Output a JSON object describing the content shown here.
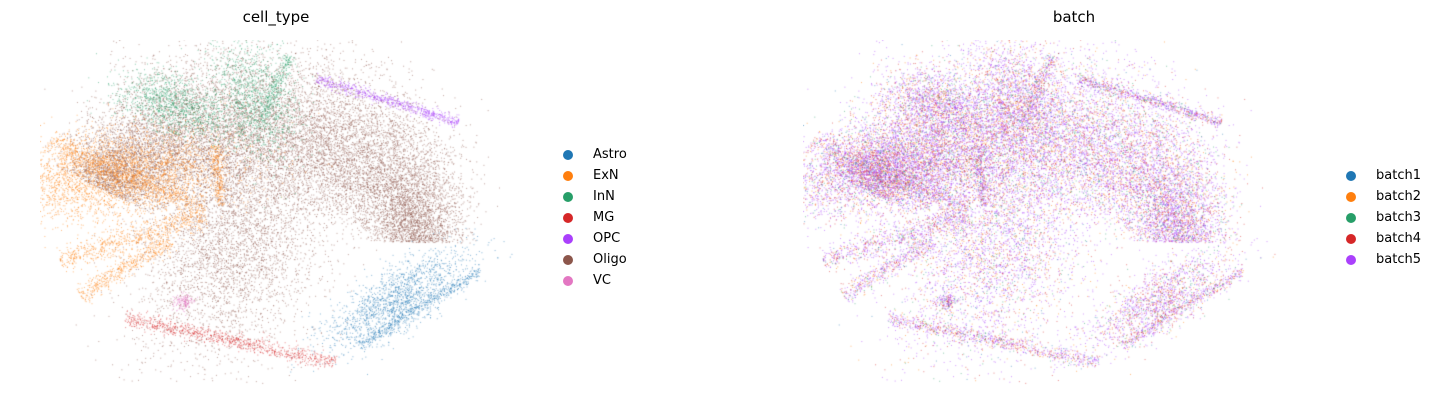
{
  "chart_data": [
    {
      "type": "scatter",
      "title": "cell_type",
      "xlabel": "",
      "ylabel": "",
      "grid": false,
      "legend_position": "right",
      "legend": [
        {
          "label": "Astro",
          "color": "#1f77b4"
        },
        {
          "label": "ExN",
          "color": "#ff7f0e"
        },
        {
          "label": "InN",
          "color": "#279e68"
        },
        {
          "label": "MG",
          "color": "#d62728"
        },
        {
          "label": "OPC",
          "color": "#aa40fc"
        },
        {
          "label": "Oligo",
          "color": "#8c564b"
        },
        {
          "label": "VC",
          "color": "#e377c2"
        }
      ]
    },
    {
      "type": "scatter",
      "title": "batch",
      "xlabel": "",
      "ylabel": "",
      "grid": false,
      "legend_position": "right",
      "legend": [
        {
          "label": "batch1",
          "color": "#1f77b4"
        },
        {
          "label": "batch2",
          "color": "#ff7f0e"
        },
        {
          "label": "batch3",
          "color": "#279e68"
        },
        {
          "label": "batch4",
          "color": "#d62728"
        },
        {
          "label": "batch5",
          "color": "#aa40fc"
        }
      ]
    }
  ]
}
